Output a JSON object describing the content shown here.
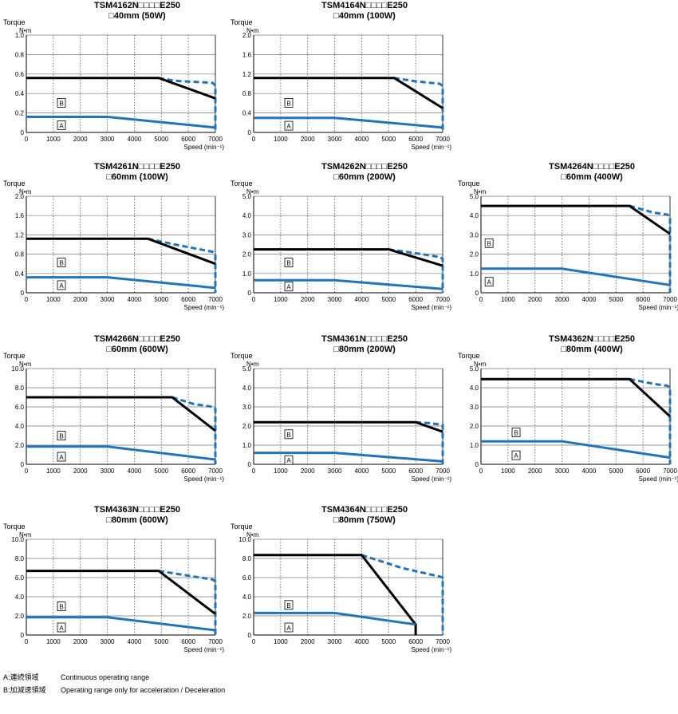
{
  "common": {
    "ylabel": "Torque",
    "yunit": "N•m",
    "xlabel": "Speed (min⁻¹)",
    "region_a": "A",
    "region_b": "B",
    "line_color_continuous": "#1f75bd",
    "line_color_limit": "#000000"
  },
  "chart_data": [
    {
      "type": "line",
      "model": "TSM4162N□□□□E250",
      "size": "□40mm (50W)",
      "xlim": [
        0,
        7000
      ],
      "ylim": [
        0,
        1.0
      ],
      "xticks": [
        0,
        1000,
        2000,
        3000,
        4000,
        5000,
        6000,
        7000
      ],
      "yticks": [
        "0",
        "0.2",
        "0.4",
        "0.6",
        "0.8",
        "1.0"
      ],
      "series": [
        {
          "name": "Operating range only for acceleration / Deceleration (boundary)",
          "style": "solid-black",
          "x": [
            0,
            4900,
            7000
          ],
          "y": [
            0.56,
            0.56,
            0.35
          ]
        },
        {
          "name": "Operating range only for acceleration / Deceleration (boundary, extended)",
          "style": "dashed-blue",
          "x": [
            4900,
            5500,
            6900,
            7000,
            7000
          ],
          "y": [
            0.56,
            0.53,
            0.51,
            0.48,
            0
          ]
        },
        {
          "name": "Continuous operating range (boundary)",
          "style": "solid-blue",
          "x": [
            0,
            3000,
            7000
          ],
          "y": [
            0.16,
            0.16,
            0.05
          ]
        }
      ],
      "labelA": [
        1300,
        0.07
      ],
      "labelB": [
        1300,
        0.3
      ]
    },
    {
      "type": "line",
      "model": "TSM4164N□□□□E250",
      "size": "□40mm (100W)",
      "xlim": [
        0,
        7000
      ],
      "ylim": [
        0,
        2.0
      ],
      "xticks": [
        0,
        1000,
        2000,
        3000,
        4000,
        5000,
        6000,
        7000
      ],
      "yticks": [
        "0",
        "0.4",
        "0.8",
        "1.2",
        "1.6",
        "2.0"
      ],
      "series": [
        {
          "name": "Operating range only for acceleration / Deceleration (boundary)",
          "style": "solid-black",
          "x": [
            0,
            5200,
            7000
          ],
          "y": [
            1.12,
            1.12,
            0.5
          ]
        },
        {
          "name": "Operating range only for acceleration / Deceleration (boundary, extended)",
          "style": "dashed-blue",
          "x": [
            5200,
            6000,
            6900,
            7000,
            7000
          ],
          "y": [
            1.12,
            1.05,
            1.0,
            0.95,
            0
          ]
        },
        {
          "name": "Continuous operating range (boundary)",
          "style": "solid-blue",
          "x": [
            0,
            3000,
            7000
          ],
          "y": [
            0.3,
            0.3,
            0.1
          ]
        }
      ],
      "labelA": [
        1300,
        0.13
      ],
      "labelB": [
        1300,
        0.6
      ]
    },
    {
      "type": "line",
      "model": "TSM4261N□□□□E250",
      "size": "□60mm (100W)",
      "xlim": [
        0,
        7000
      ],
      "ylim": [
        0,
        2.0
      ],
      "xticks": [
        0,
        1000,
        2000,
        3000,
        4000,
        5000,
        6000,
        7000
      ],
      "yticks": [
        "0",
        "0.4",
        "0.8",
        "1.2",
        "1.6",
        "2.0"
      ],
      "series": [
        {
          "name": "Operating range only for acceleration / Deceleration (boundary)",
          "style": "solid-black",
          "x": [
            0,
            4500,
            7000
          ],
          "y": [
            1.12,
            1.12,
            0.6
          ]
        },
        {
          "name": "Operating range only for acceleration / Deceleration (boundary, extended)",
          "style": "dashed-blue",
          "x": [
            4500,
            5500,
            6900,
            7000,
            7000
          ],
          "y": [
            1.12,
            1.0,
            0.85,
            0.8,
            0
          ]
        },
        {
          "name": "Continuous operating range (boundary)",
          "style": "solid-blue",
          "x": [
            0,
            3000,
            7000
          ],
          "y": [
            0.32,
            0.32,
            0.1
          ]
        }
      ],
      "labelA": [
        1300,
        0.15
      ],
      "labelB": [
        1300,
        0.62
      ]
    },
    {
      "type": "line",
      "model": "TSM4262N□□□□E250",
      "size": "□60mm (200W)",
      "xlim": [
        0,
        7000
      ],
      "ylim": [
        0,
        5.0
      ],
      "xticks": [
        0,
        1000,
        2000,
        3000,
        4000,
        5000,
        6000,
        7000
      ],
      "yticks": [
        "0",
        "1.0",
        "2.0",
        "3.0",
        "4.0",
        "5.0"
      ],
      "series": [
        {
          "name": "Operating range only for acceleration / Deceleration (boundary)",
          "style": "solid-black",
          "x": [
            0,
            5000,
            7000
          ],
          "y": [
            2.25,
            2.25,
            1.4
          ]
        },
        {
          "name": "Operating range only for acceleration / Deceleration (boundary, extended)",
          "style": "dashed-blue",
          "x": [
            5000,
            6000,
            6900,
            7000,
            7000
          ],
          "y": [
            2.25,
            2.05,
            1.85,
            1.75,
            0
          ]
        },
        {
          "name": "Continuous operating range (boundary)",
          "style": "solid-blue",
          "x": [
            0,
            3000,
            7000
          ],
          "y": [
            0.65,
            0.65,
            0.2
          ]
        }
      ],
      "labelA": [
        1300,
        0.3
      ],
      "labelB": [
        1300,
        1.55
      ]
    },
    {
      "type": "line",
      "model": "TSM4264N□□□□E250",
      "size": "□60mm (400W)",
      "xlim": [
        0,
        7000
      ],
      "ylim": [
        0,
        5.0
      ],
      "xticks": [
        0,
        1000,
        2000,
        3000,
        4000,
        5000,
        6000,
        7000
      ],
      "yticks": [
        "0",
        "1.0",
        "2.0",
        "3.0",
        "4.0",
        "5.0"
      ],
      "series": [
        {
          "name": "Operating range only for acceleration / Deceleration (boundary)",
          "style": "solid-black",
          "x": [
            0,
            5500,
            7000
          ],
          "y": [
            4.5,
            4.5,
            3.05
          ]
        },
        {
          "name": "Operating range only for acceleration / Deceleration (boundary, extended)",
          "style": "dashed-blue",
          "x": [
            5500,
            6400,
            6900,
            7000,
            7000
          ],
          "y": [
            4.5,
            4.15,
            4.05,
            3.95,
            0
          ]
        },
        {
          "name": "Continuous operating range (boundary)",
          "style": "solid-blue",
          "x": [
            0,
            3000,
            7000
          ],
          "y": [
            1.25,
            1.25,
            0.4
          ]
        }
      ],
      "labelA": [
        300,
        0.55
      ],
      "labelB": [
        300,
        2.55
      ]
    },
    {
      "type": "line",
      "model": "TSM4266N□□□□E250",
      "size": "□60mm (600W)",
      "xlim": [
        0,
        7000
      ],
      "ylim": [
        0,
        10.0
      ],
      "xticks": [
        0,
        1000,
        2000,
        3000,
        4000,
        5000,
        6000,
        7000
      ],
      "yticks": [
        "0",
        "2.0",
        "4.0",
        "6.0",
        "8.0",
        "10.0"
      ],
      "series": [
        {
          "name": "Operating range only for acceleration / Deceleration (boundary)",
          "style": "solid-black",
          "x": [
            0,
            5400,
            7000
          ],
          "y": [
            7.0,
            7.0,
            3.5
          ]
        },
        {
          "name": "Operating range only for acceleration / Deceleration (boundary, extended)",
          "style": "dashed-blue",
          "x": [
            5400,
            6200,
            6900,
            7000,
            7000
          ],
          "y": [
            7.0,
            6.3,
            6.0,
            5.8,
            0
          ]
        },
        {
          "name": "Continuous operating range (boundary)",
          "style": "solid-blue",
          "x": [
            0,
            3000,
            7000
          ],
          "y": [
            1.85,
            1.85,
            0.5
          ]
        }
      ],
      "labelA": [
        1300,
        0.75
      ],
      "labelB": [
        1300,
        2.95
      ]
    },
    {
      "type": "line",
      "model": "TSM4361N□□□□E250",
      "size": "□80mm (200W)",
      "xlim": [
        0,
        7000
      ],
      "ylim": [
        0,
        5.0
      ],
      "xticks": [
        0,
        1000,
        2000,
        3000,
        4000,
        5000,
        6000,
        7000
      ],
      "yticks": [
        "0",
        "1.0",
        "2.0",
        "3.0",
        "4.0",
        "5.0"
      ],
      "series": [
        {
          "name": "Operating range only for acceleration / Deceleration (boundary)",
          "style": "solid-black",
          "x": [
            0,
            6000,
            7000
          ],
          "y": [
            2.2,
            2.2,
            1.7
          ]
        },
        {
          "name": "Operating range only for acceleration / Deceleration (boundary, extended)",
          "style": "dashed-blue",
          "x": [
            6000,
            6500,
            6900,
            7000,
            7000
          ],
          "y": [
            2.2,
            2.15,
            2.08,
            2.05,
            0
          ]
        },
        {
          "name": "Continuous operating range (boundary)",
          "style": "solid-blue",
          "x": [
            0,
            3000,
            7000
          ],
          "y": [
            0.6,
            0.6,
            0.15
          ]
        }
      ],
      "labelA": [
        1300,
        0.2
      ],
      "labelB": [
        1300,
        1.55
      ]
    },
    {
      "type": "line",
      "model": "TSM4362N□□□□E250",
      "size": "□80mm (400W)",
      "xlim": [
        0,
        7000
      ],
      "ylim": [
        0,
        5.0
      ],
      "xticks": [
        0,
        1000,
        2000,
        3000,
        4000,
        5000,
        6000,
        7000
      ],
      "yticks": [
        "0",
        "1.0",
        "2.0",
        "3.0",
        "4.0",
        "5.0"
      ],
      "series": [
        {
          "name": "Operating range only for acceleration / Deceleration (boundary)",
          "style": "solid-black",
          "x": [
            0,
            5500,
            7000
          ],
          "y": [
            4.45,
            4.45,
            2.5
          ]
        },
        {
          "name": "Operating range only for acceleration / Deceleration (boundary, extended)",
          "style": "dashed-blue",
          "x": [
            5500,
            6400,
            6900,
            7000,
            7000
          ],
          "y": [
            4.45,
            4.2,
            4.1,
            4.0,
            0
          ]
        },
        {
          "name": "Continuous operating range (boundary)",
          "style": "solid-blue",
          "x": [
            0,
            3000,
            7000
          ],
          "y": [
            1.2,
            1.2,
            0.35
          ]
        }
      ],
      "labelA": [
        1300,
        0.45
      ],
      "labelB": [
        1300,
        1.65
      ]
    },
    {
      "type": "line",
      "model": "TSM4363N□□□□E250",
      "size": "□80mm (600W)",
      "xlim": [
        0,
        7000
      ],
      "ylim": [
        0,
        10.0
      ],
      "xticks": [
        0,
        1000,
        2000,
        3000,
        4000,
        5000,
        6000,
        7000
      ],
      "yticks": [
        "0",
        "2.0",
        "4.0",
        "6.0",
        "8.0",
        "10.0"
      ],
      "series": [
        {
          "name": "Operating range only for acceleration / Deceleration (boundary)",
          "style": "solid-black",
          "x": [
            0,
            4900,
            7000
          ],
          "y": [
            6.7,
            6.7,
            2.2
          ]
        },
        {
          "name": "Operating range only for acceleration / Deceleration (boundary, extended)",
          "style": "dashed-blue",
          "x": [
            4900,
            6000,
            6900,
            7000,
            7000
          ],
          "y": [
            6.7,
            6.2,
            5.8,
            5.6,
            0
          ]
        },
        {
          "name": "Continuous operating range (boundary)",
          "style": "solid-blue",
          "x": [
            0,
            3000,
            7000
          ],
          "y": [
            1.85,
            1.85,
            0.5
          ]
        }
      ],
      "labelA": [
        1300,
        0.75
      ],
      "labelB": [
        1300,
        2.95
      ]
    },
    {
      "type": "line",
      "model": "TSM4364N□□□□E250",
      "size": "□80mm (750W)",
      "xlim": [
        0,
        7000
      ],
      "ylim": [
        0,
        10.0
      ],
      "xticks": [
        0,
        1000,
        2000,
        3000,
        4000,
        5000,
        6000,
        7000
      ],
      "yticks": [
        "0",
        "2.0",
        "4.0",
        "6.0",
        "8.0",
        "10.0"
      ],
      "series": [
        {
          "name": "Operating range only for acceleration / Deceleration (boundary)",
          "style": "solid-black",
          "x": [
            0,
            4000,
            6000,
            6000
          ],
          "y": [
            8.35,
            8.35,
            1.1,
            0
          ]
        },
        {
          "name": "Operating range only for acceleration / Deceleration (boundary, extended)",
          "style": "dashed-blue",
          "x": [
            4000,
            5500,
            6900,
            7000,
            7000
          ],
          "y": [
            8.35,
            7.0,
            6.1,
            6.0,
            0
          ]
        },
        {
          "name": "Continuous operating range (boundary)",
          "style": "solid-blue",
          "x": [
            0,
            3000,
            6000
          ],
          "y": [
            2.3,
            2.3,
            1.1
          ]
        }
      ],
      "labelA": [
        1300,
        0.75
      ],
      "labelB": [
        1300,
        3.1
      ]
    }
  ],
  "legend": [
    {
      "key": "A:連続領域",
      "desc": "Continuous operating range"
    },
    {
      "key": "B:加減速領域",
      "desc": "Operating range only for acceleration / Deceleration"
    }
  ]
}
